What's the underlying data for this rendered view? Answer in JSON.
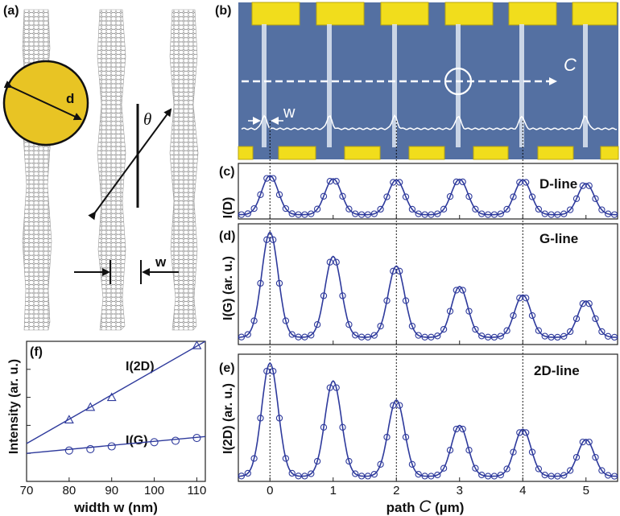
{
  "panels": {
    "a": {
      "tag": "(a)",
      "d": "d",
      "theta": "θ",
      "w": "w"
    },
    "b": {
      "tag": "(b)",
      "path": "C",
      "w": "w"
    },
    "c": {
      "tag": "(c)",
      "ylabel": "I(D)",
      "title": "D-line"
    },
    "d": {
      "tag": "(d)",
      "ylabel": "I(G) (ar. u.)",
      "title": "G-line"
    },
    "e": {
      "tag": "(e)",
      "ylabel": "I(2D) (ar. u.)",
      "title": "2D-line"
    },
    "f": {
      "tag": "(f)",
      "ylabel": "Intensity (ar. u.)",
      "xlabel": "width w (nm)",
      "series_2d": "I(2D)",
      "series_g": "I(G)"
    }
  },
  "path_axis": {
    "xlabel_prefix": "path",
    "xlabel_symbol": "C",
    "xlabel_unit": "(µm)"
  },
  "colors": {
    "trace": "#2e3a9c",
    "gold": "#f1dd1c",
    "sample": "#4d6a9c"
  },
  "chart_data": [
    {
      "type": "line",
      "panel": "c",
      "title": "D-line",
      "ylabel": "I(D)",
      "xlim": [
        -0.5,
        5.5
      ],
      "ylim": [
        0,
        1.05
      ],
      "peaks_x": [
        0,
        1,
        2,
        3,
        4,
        5
      ],
      "peak_heights": [
        0.82,
        0.76,
        0.74,
        0.75,
        0.74,
        0.67
      ],
      "baseline": 0.08,
      "ticks": [
        0,
        1,
        2,
        3,
        4,
        5
      ]
    },
    {
      "type": "line",
      "panel": "d",
      "title": "G-line",
      "ylabel": "I(G) (ar. u.)",
      "xlim": [
        -0.5,
        5.5
      ],
      "ylim": [
        0,
        1.0
      ],
      "peaks_x": [
        0,
        1,
        2,
        3,
        4,
        5
      ],
      "peak_heights": [
        0.93,
        0.73,
        0.65,
        0.48,
        0.41,
        0.36
      ],
      "baseline": 0.06,
      "ticks": [
        0,
        1,
        2,
        3,
        4,
        5
      ]
    },
    {
      "type": "line",
      "panel": "e",
      "title": "2D-line",
      "ylabel": "I(2D) (ar. u.)",
      "xlim": [
        -0.5,
        5.5
      ],
      "ylim": [
        0,
        1.0
      ],
      "peaks_x": [
        0,
        1,
        2,
        3,
        4,
        5
      ],
      "peak_heights": [
        0.93,
        0.79,
        0.64,
        0.44,
        0.41,
        0.33
      ],
      "baseline": 0.04,
      "ticks": [
        0,
        1,
        2,
        3,
        4,
        5
      ]
    },
    {
      "type": "scatter",
      "panel": "f",
      "xlabel": "width w (nm)",
      "ylabel": "Intensity (ar. u.)",
      "xlim": [
        70,
        112
      ],
      "ylim": [
        0,
        1.0
      ],
      "xticks": [
        70,
        80,
        90,
        100,
        110
      ],
      "series": [
        {
          "name": "I(2D)",
          "marker": "triangle",
          "x": [
            80,
            85,
            90,
            110
          ],
          "y": [
            0.44,
            0.53,
            0.6,
            0.97
          ],
          "fit": [
            [
              70,
              0.27
            ],
            [
              112,
              1.0
            ]
          ]
        },
        {
          "name": "I(G)",
          "marker": "circle",
          "x": [
            80,
            85,
            90,
            100,
            105,
            110
          ],
          "y": [
            0.22,
            0.23,
            0.25,
            0.28,
            0.29,
            0.31
          ],
          "fit": [
            [
              70,
              0.2
            ],
            [
              112,
              0.32
            ]
          ]
        }
      ]
    }
  ]
}
